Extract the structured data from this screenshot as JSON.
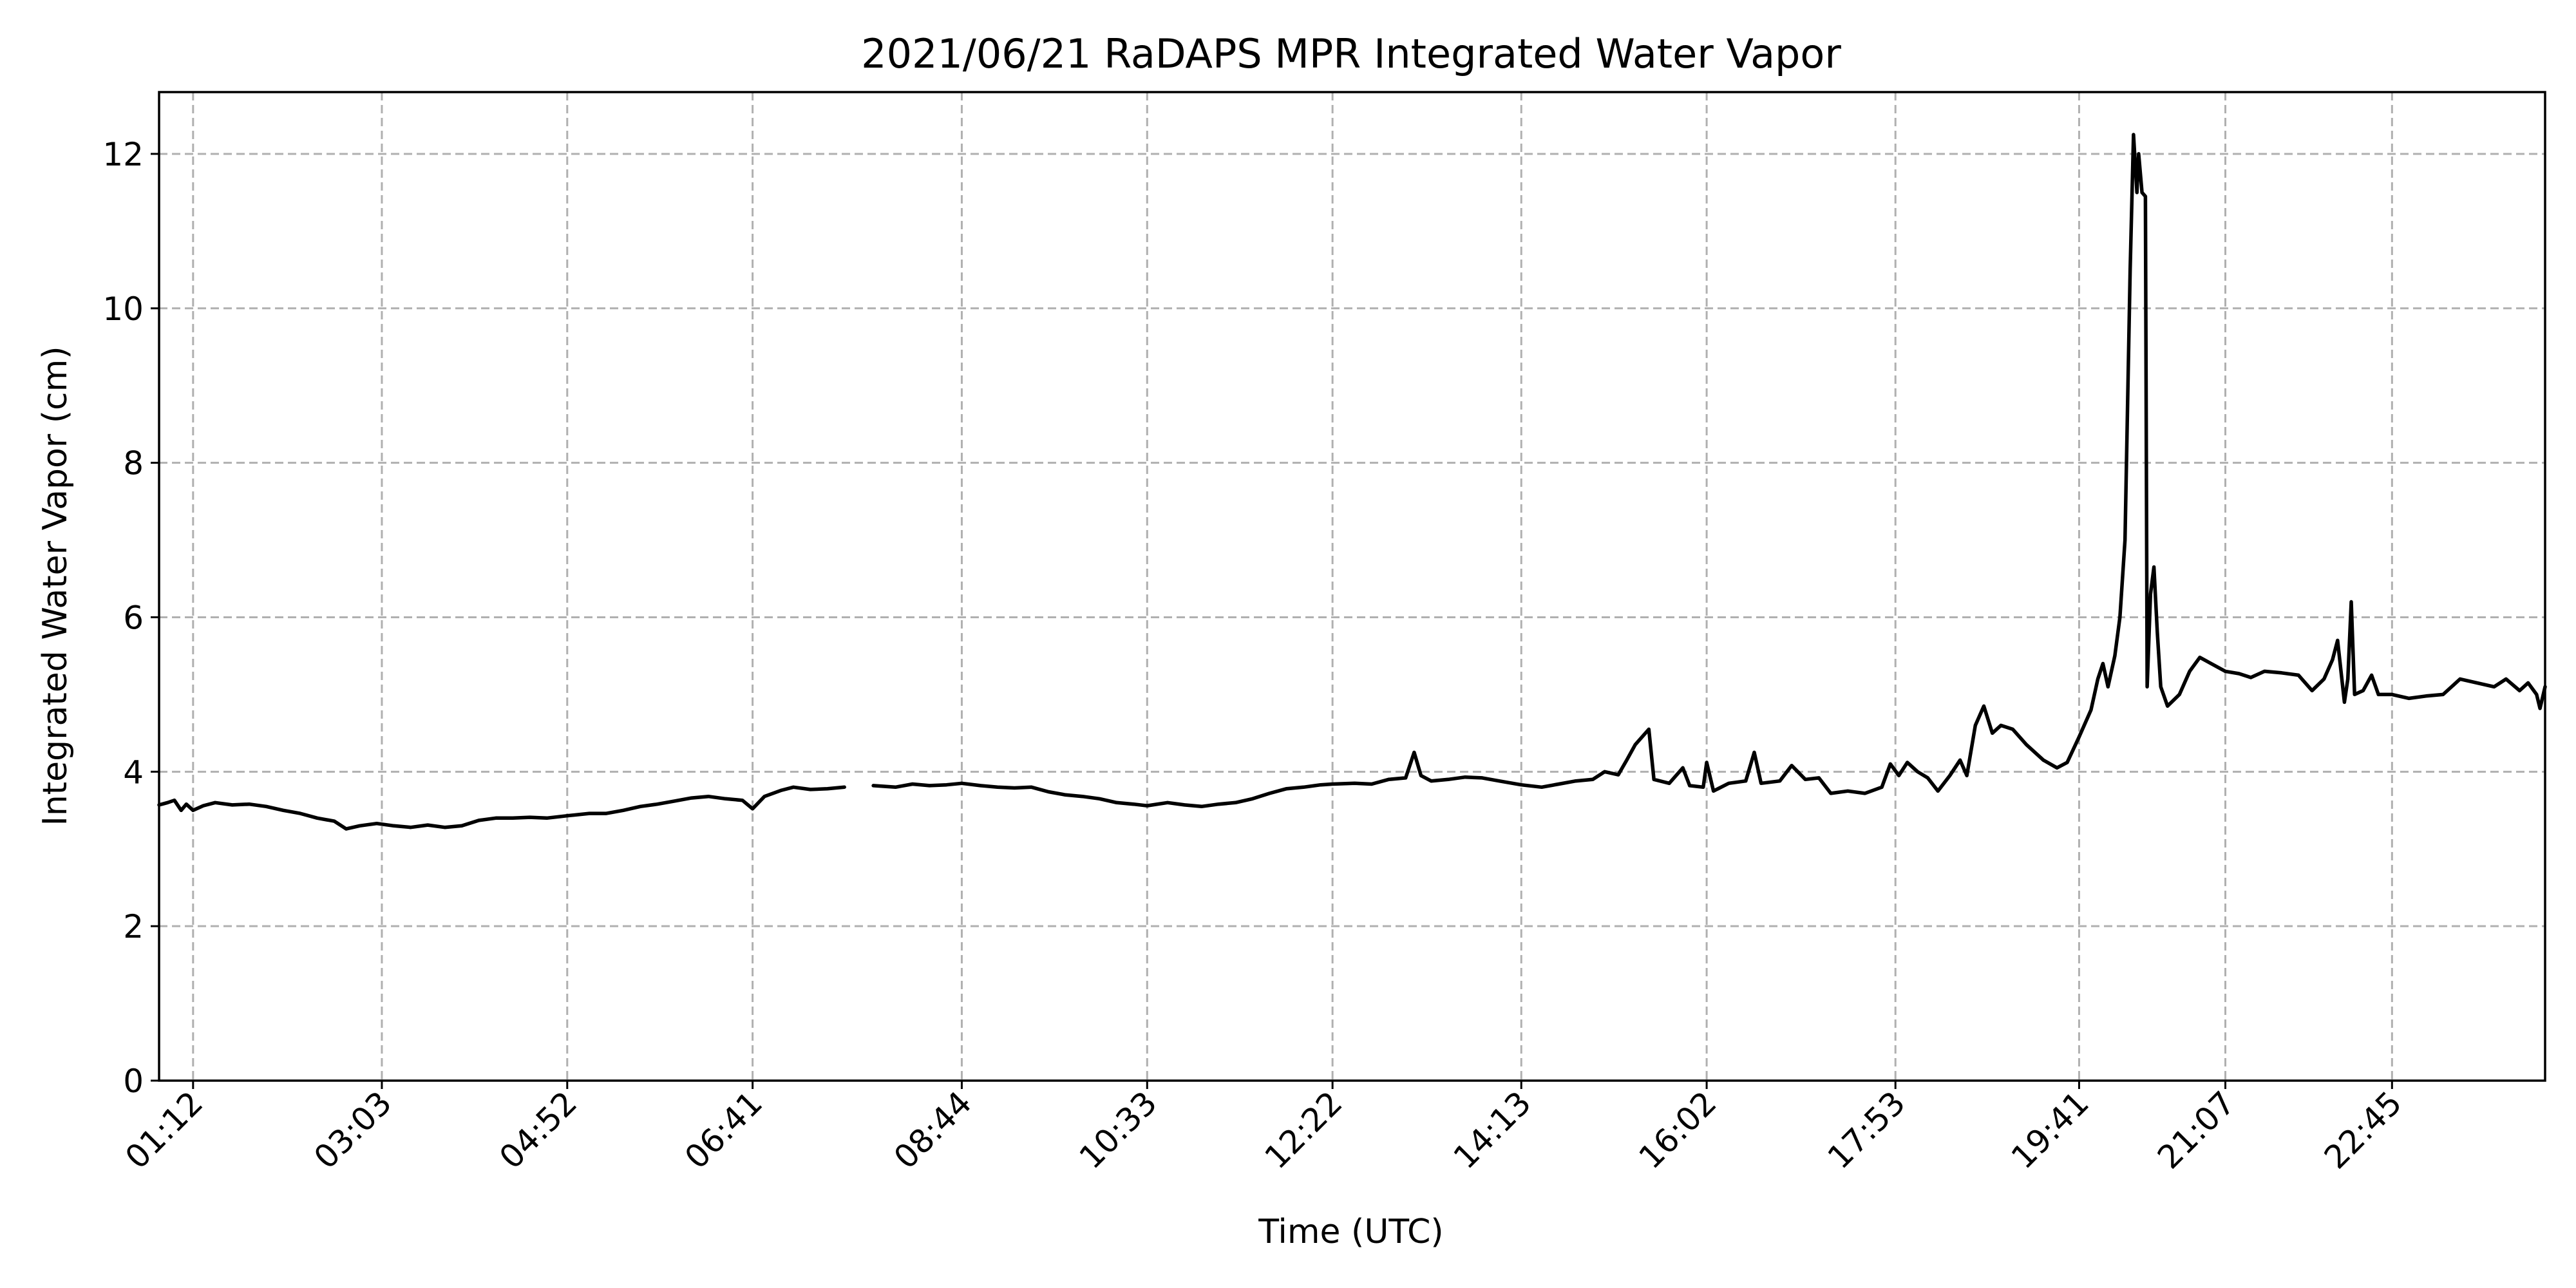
{
  "chart_data": {
    "type": "line",
    "title": "2021/06/21 RaDAPS MPR Integrated Water Vapor",
    "xlabel": "Time (UTC)",
    "ylabel": "Integrated Water Vapor (cm)",
    "grid": true,
    "line_color": "#000000",
    "grid_color": "#b0b0b0",
    "xlim": [
      "00:52",
      "24:15"
    ],
    "ylim": [
      0,
      12.8
    ],
    "x_tick_labels": [
      "01:12",
      "03:03",
      "04:52",
      "06:41",
      "08:44",
      "10:33",
      "12:22",
      "14:13",
      "16:02",
      "17:53",
      "19:41",
      "21:07",
      "22:45"
    ],
    "y_ticks": [
      0,
      2,
      4,
      6,
      8,
      10,
      12
    ],
    "series": [
      {
        "points": [
          [
            "00:52",
            3.57
          ],
          [
            "00:57",
            3.6
          ],
          [
            "01:01",
            3.63
          ],
          [
            "01:05",
            3.5
          ],
          [
            "01:08",
            3.58
          ],
          [
            "01:12",
            3.5
          ],
          [
            "01:18",
            3.56
          ],
          [
            "01:25",
            3.6
          ],
          [
            "01:35",
            3.57
          ],
          [
            "01:45",
            3.58
          ],
          [
            "01:55",
            3.55
          ],
          [
            "02:05",
            3.5
          ],
          [
            "02:15",
            3.46
          ],
          [
            "02:25",
            3.4
          ],
          [
            "02:35",
            3.36
          ],
          [
            "02:42",
            3.26
          ],
          [
            "02:50",
            3.3
          ],
          [
            "03:00",
            3.33
          ],
          [
            "03:10",
            3.3
          ],
          [
            "03:20",
            3.28
          ],
          [
            "03:30",
            3.31
          ],
          [
            "03:40",
            3.28
          ],
          [
            "03:50",
            3.3
          ],
          [
            "04:00",
            3.37
          ],
          [
            "04:10",
            3.4
          ],
          [
            "04:20",
            3.4
          ],
          [
            "04:30",
            3.41
          ],
          [
            "04:40",
            3.4
          ],
          [
            "04:52",
            3.43
          ],
          [
            "05:05",
            3.46
          ],
          [
            "05:15",
            3.46
          ],
          [
            "05:25",
            3.5
          ],
          [
            "05:35",
            3.55
          ],
          [
            "05:45",
            3.58
          ],
          [
            "05:55",
            3.62
          ],
          [
            "06:05",
            3.66
          ],
          [
            "06:15",
            3.68
          ],
          [
            "06:25",
            3.65
          ],
          [
            "06:35",
            3.63
          ],
          [
            "06:41",
            3.52
          ],
          [
            "06:48",
            3.68
          ],
          [
            "06:58",
            3.76
          ],
          [
            "07:05",
            3.8
          ],
          [
            "07:15",
            3.77
          ],
          [
            "07:25",
            3.78
          ],
          [
            "07:35",
            3.8
          ],
          [
            "07:40",
            null
          ],
          [
            "07:52",
            3.82
          ],
          [
            "08:05",
            3.8
          ],
          [
            "08:15",
            3.84
          ],
          [
            "08:25",
            3.82
          ],
          [
            "08:35",
            3.83
          ],
          [
            "08:44",
            3.85
          ],
          [
            "08:55",
            3.82
          ],
          [
            "09:05",
            3.8
          ],
          [
            "09:15",
            3.79
          ],
          [
            "09:25",
            3.8
          ],
          [
            "09:35",
            3.74
          ],
          [
            "09:45",
            3.7
          ],
          [
            "09:55",
            3.68
          ],
          [
            "10:05",
            3.65
          ],
          [
            "10:15",
            3.6
          ],
          [
            "10:25",
            3.58
          ],
          [
            "10:33",
            3.56
          ],
          [
            "10:45",
            3.6
          ],
          [
            "10:55",
            3.57
          ],
          [
            "11:05",
            3.55
          ],
          [
            "11:15",
            3.58
          ],
          [
            "11:25",
            3.6
          ],
          [
            "11:35",
            3.65
          ],
          [
            "11:45",
            3.72
          ],
          [
            "11:55",
            3.78
          ],
          [
            "12:05",
            3.8
          ],
          [
            "12:15",
            3.83
          ],
          [
            "12:22",
            3.84
          ],
          [
            "12:35",
            3.85
          ],
          [
            "12:45",
            3.84
          ],
          [
            "12:55",
            3.9
          ],
          [
            "13:05",
            3.92
          ],
          [
            "13:10",
            4.25
          ],
          [
            "13:14",
            3.95
          ],
          [
            "13:20",
            3.88
          ],
          [
            "13:30",
            3.9
          ],
          [
            "13:40",
            3.93
          ],
          [
            "13:50",
            3.92
          ],
          [
            "14:00",
            3.88
          ],
          [
            "14:13",
            3.83
          ],
          [
            "14:25",
            3.8
          ],
          [
            "14:35",
            3.84
          ],
          [
            "14:45",
            3.88
          ],
          [
            "14:55",
            3.9
          ],
          [
            "15:02",
            4.0
          ],
          [
            "15:10",
            3.96
          ],
          [
            "15:15",
            4.15
          ],
          [
            "15:20",
            4.35
          ],
          [
            "15:28",
            4.55
          ],
          [
            "15:31",
            3.9
          ],
          [
            "15:40",
            3.85
          ],
          [
            "15:48",
            4.05
          ],
          [
            "15:52",
            3.82
          ],
          [
            "16:00",
            3.8
          ],
          [
            "16:02",
            4.12
          ],
          [
            "16:06",
            3.75
          ],
          [
            "16:15",
            3.85
          ],
          [
            "16:25",
            3.88
          ],
          [
            "16:30",
            4.25
          ],
          [
            "16:34",
            3.85
          ],
          [
            "16:45",
            3.88
          ],
          [
            "16:52",
            4.08
          ],
          [
            "17:00",
            3.9
          ],
          [
            "17:08",
            3.92
          ],
          [
            "17:15",
            3.72
          ],
          [
            "17:25",
            3.75
          ],
          [
            "17:35",
            3.72
          ],
          [
            "17:45",
            3.8
          ],
          [
            "17:50",
            4.1
          ],
          [
            "17:55",
            3.95
          ],
          [
            "18:00",
            4.12
          ],
          [
            "18:06",
            4.0
          ],
          [
            "18:12",
            3.92
          ],
          [
            "18:18",
            3.75
          ],
          [
            "18:25",
            3.95
          ],
          [
            "18:31",
            4.15
          ],
          [
            "18:35",
            3.95
          ],
          [
            "18:40",
            4.6
          ],
          [
            "18:45",
            4.85
          ],
          [
            "18:50",
            4.5
          ],
          [
            "18:55",
            4.6
          ],
          [
            "19:02",
            4.55
          ],
          [
            "19:10",
            4.35
          ],
          [
            "19:20",
            4.15
          ],
          [
            "19:28",
            4.05
          ],
          [
            "19:34",
            4.12
          ],
          [
            "19:41",
            4.45
          ],
          [
            "19:48",
            4.8
          ],
          [
            "19:52",
            5.2
          ],
          [
            "19:55",
            5.4
          ],
          [
            "19:58",
            5.1
          ],
          [
            "20:02",
            5.5
          ],
          [
            "20:05",
            6.0
          ],
          [
            "20:08",
            7.0
          ],
          [
            "20:11",
            10.5
          ],
          [
            "20:13",
            12.25
          ],
          [
            "20:15",
            11.5
          ],
          [
            "20:16",
            12.0
          ],
          [
            "20:18",
            11.5
          ],
          [
            "20:20",
            11.45
          ],
          [
            "20:21",
            5.1
          ],
          [
            "20:23",
            6.3
          ],
          [
            "20:25",
            6.65
          ],
          [
            "20:27",
            5.8
          ],
          [
            "20:29",
            5.1
          ],
          [
            "20:33",
            4.85
          ],
          [
            "20:40",
            5.0
          ],
          [
            "20:46",
            5.3
          ],
          [
            "20:52",
            5.48
          ],
          [
            "21:07",
            5.3
          ],
          [
            "21:15",
            5.27
          ],
          [
            "21:22",
            5.22
          ],
          [
            "21:30",
            5.3
          ],
          [
            "21:40",
            5.28
          ],
          [
            "21:50",
            5.25
          ],
          [
            "21:58",
            5.05
          ],
          [
            "22:05",
            5.2
          ],
          [
            "22:10",
            5.45
          ],
          [
            "22:13",
            5.7
          ],
          [
            "22:15",
            5.3
          ],
          [
            "22:17",
            4.9
          ],
          [
            "22:19",
            5.2
          ],
          [
            "22:21",
            6.2
          ],
          [
            "22:23",
            5.0
          ],
          [
            "22:28",
            5.05
          ],
          [
            "22:33",
            5.25
          ],
          [
            "22:37",
            5.0
          ],
          [
            "22:45",
            5.0
          ],
          [
            "22:55",
            4.95
          ],
          [
            "23:05",
            4.98
          ],
          [
            "23:15",
            5.0
          ],
          [
            "23:25",
            5.2
          ],
          [
            "23:35",
            5.15
          ],
          [
            "23:45",
            5.1
          ],
          [
            "23:52",
            5.2
          ],
          [
            "24:00",
            5.05
          ],
          [
            "24:05",
            5.15
          ],
          [
            "24:10",
            5.0
          ],
          [
            "24:12",
            4.82
          ],
          [
            "24:15",
            5.1
          ]
        ]
      }
    ]
  }
}
